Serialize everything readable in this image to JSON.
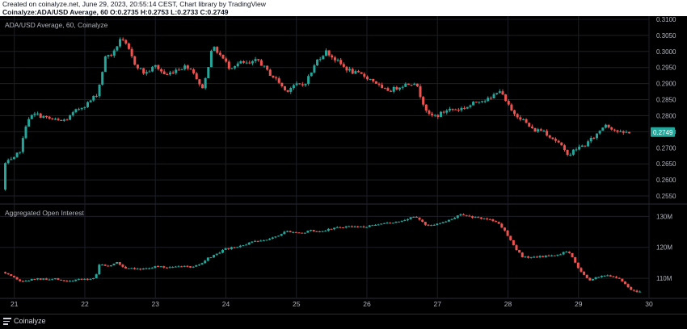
{
  "header": {
    "line1": "Created on coinalyze.net, June 29, 2023, 20:55:14 CEST, Chart library by TradingView",
    "line2": "Coinalyze:ADA/USD Average, 60 O:0.2735 H:0.2753 L:0.2733 C:0.2749"
  },
  "footer": {
    "brand": "Coinalyze",
    "logo_icon": "coinalyze-logo-icon"
  },
  "colors": {
    "up": "#26a69a",
    "down": "#ef5350",
    "grid": "#1c1f27",
    "axis_text": "#b2b5be",
    "background": "#000000"
  },
  "chart_data": [
    {
      "type": "candlestick",
      "title": "ADA/USD Average, 60, Coinalyze",
      "ylim": [
        0.2525,
        0.311
      ],
      "yticks": [
        "0.3100",
        "0.3050",
        "0.3000",
        "0.2950",
        "0.2900",
        "0.2850",
        "0.2800",
        "0.2750",
        "0.2700",
        "0.2650",
        "0.2600",
        "0.2550"
      ],
      "last_price": "0.2749",
      "xlim": [
        20.82,
        30.0
      ],
      "path": [
        [
          20.83,
          0.257
        ],
        [
          20.86,
          0.265
        ],
        [
          21.0,
          0.2665
        ],
        [
          21.1,
          0.27
        ],
        [
          21.18,
          0.279
        ],
        [
          21.3,
          0.2805
        ],
        [
          21.5,
          0.279
        ],
        [
          21.65,
          0.2782
        ],
        [
          21.75,
          0.279
        ],
        [
          21.9,
          0.282
        ],
        [
          22.05,
          0.284
        ],
        [
          22.18,
          0.287
        ],
        [
          22.3,
          0.299
        ],
        [
          22.4,
          0.299
        ],
        [
          22.5,
          0.304
        ],
        [
          22.6,
          0.3015
        ],
        [
          22.7,
          0.2965
        ],
        [
          22.85,
          0.293
        ],
        [
          23.0,
          0.2955
        ],
        [
          23.15,
          0.2925
        ],
        [
          23.3,
          0.2945
        ],
        [
          23.45,
          0.2955
        ],
        [
          23.55,
          0.2935
        ],
        [
          23.65,
          0.288
        ],
        [
          23.72,
          0.292
        ],
        [
          23.8,
          0.3015
        ],
        [
          23.9,
          0.2995
        ],
        [
          24.05,
          0.295
        ],
        [
          24.2,
          0.2965
        ],
        [
          24.35,
          0.296
        ],
        [
          24.45,
          0.2975
        ],
        [
          24.6,
          0.2935
        ],
        [
          24.75,
          0.2905
        ],
        [
          24.85,
          0.2875
        ],
        [
          24.95,
          0.2895
        ],
        [
          25.1,
          0.2895
        ],
        [
          25.2,
          0.293
        ],
        [
          25.3,
          0.2975
        ],
        [
          25.42,
          0.3
        ],
        [
          25.55,
          0.2975
        ],
        [
          25.68,
          0.295
        ],
        [
          25.8,
          0.2935
        ],
        [
          25.95,
          0.2925
        ],
        [
          26.12,
          0.2905
        ],
        [
          26.22,
          0.288
        ],
        [
          26.35,
          0.288
        ],
        [
          26.5,
          0.2895
        ],
        [
          26.68,
          0.2905
        ],
        [
          26.8,
          0.284
        ],
        [
          26.88,
          0.28
        ],
        [
          27.0,
          0.28
        ],
        [
          27.15,
          0.282
        ],
        [
          27.3,
          0.282
        ],
        [
          27.45,
          0.283
        ],
        [
          27.6,
          0.285
        ],
        [
          27.75,
          0.285
        ],
        [
          27.87,
          0.2885
        ],
        [
          27.95,
          0.285
        ],
        [
          28.05,
          0.2815
        ],
        [
          28.2,
          0.279
        ],
        [
          28.35,
          0.2755
        ],
        [
          28.5,
          0.2755
        ],
        [
          28.6,
          0.2735
        ],
        [
          28.7,
          0.272
        ],
        [
          28.8,
          0.269
        ],
        [
          28.88,
          0.268
        ],
        [
          28.95,
          0.2695
        ],
        [
          29.1,
          0.271
        ],
        [
          29.25,
          0.274
        ],
        [
          29.38,
          0.2775
        ],
        [
          29.48,
          0.276
        ],
        [
          29.6,
          0.2745
        ],
        [
          29.72,
          0.2749
        ]
      ]
    },
    {
      "type": "candlestick",
      "title": "Aggregated Open Interest",
      "ylim": [
        103.5,
        134
      ],
      "yticks": [
        "130M",
        "120M",
        "110M"
      ],
      "xlim": [
        20.82,
        30.0
      ],
      "xticks": [
        "21",
        "22",
        "23",
        "24",
        "25",
        "26",
        "27",
        "28",
        "29",
        "30"
      ],
      "path": [
        [
          20.83,
          112.0
        ],
        [
          21.0,
          110.0
        ],
        [
          21.1,
          108.8
        ],
        [
          21.3,
          109.8
        ],
        [
          21.5,
          109.5
        ],
        [
          21.6,
          109.8
        ],
        [
          21.75,
          109.0
        ],
        [
          21.9,
          109.5
        ],
        [
          22.05,
          109.8
        ],
        [
          22.15,
          110.2
        ],
        [
          22.2,
          114.5
        ],
        [
          22.35,
          113.8
        ],
        [
          22.45,
          115.2
        ],
        [
          22.55,
          113.5
        ],
        [
          22.7,
          113.2
        ],
        [
          22.85,
          113.0
        ],
        [
          23.0,
          113.8
        ],
        [
          23.15,
          113.5
        ],
        [
          23.3,
          114.0
        ],
        [
          23.5,
          113.6
        ],
        [
          23.65,
          114.5
        ],
        [
          23.75,
          116.5
        ],
        [
          23.85,
          117.5
        ],
        [
          24.0,
          119.5
        ],
        [
          24.15,
          120.0
        ],
        [
          24.35,
          121.5
        ],
        [
          24.55,
          122.5
        ],
        [
          24.7,
          123.5
        ],
        [
          24.85,
          125.2
        ],
        [
          25.0,
          125.0
        ],
        [
          25.1,
          124.5
        ],
        [
          25.2,
          125.5
        ],
        [
          25.3,
          125.0
        ],
        [
          25.45,
          125.8
        ],
        [
          25.6,
          126.5
        ],
        [
          25.75,
          126.8
        ],
        [
          25.9,
          126.5
        ],
        [
          26.1,
          127.0
        ],
        [
          26.35,
          128.0
        ],
        [
          26.55,
          129.0
        ],
        [
          26.65,
          130.0
        ],
        [
          26.75,
          129.0
        ],
        [
          26.82,
          127.2
        ],
        [
          27.0,
          127.5
        ],
        [
          27.15,
          128.5
        ],
        [
          27.3,
          130.5
        ],
        [
          27.45,
          130.0
        ],
        [
          27.6,
          129.5
        ],
        [
          27.75,
          129.0
        ],
        [
          27.85,
          128.0
        ],
        [
          27.95,
          125.5
        ],
        [
          28.05,
          122.0
        ],
        [
          28.1,
          120.0
        ],
        [
          28.2,
          117.0
        ],
        [
          28.3,
          116.5
        ],
        [
          28.45,
          117.0
        ],
        [
          28.6,
          117.3
        ],
        [
          28.75,
          118.0
        ],
        [
          28.85,
          119.0
        ],
        [
          28.92,
          116.5
        ],
        [
          29.0,
          113.0
        ],
        [
          29.08,
          111.0
        ],
        [
          29.15,
          109.5
        ],
        [
          29.3,
          110.5
        ],
        [
          29.4,
          111.0
        ],
        [
          29.5,
          110.5
        ],
        [
          29.6,
          109.5
        ],
        [
          29.7,
          107.0
        ],
        [
          29.8,
          105.8
        ],
        [
          29.87,
          105.5
        ]
      ]
    }
  ]
}
